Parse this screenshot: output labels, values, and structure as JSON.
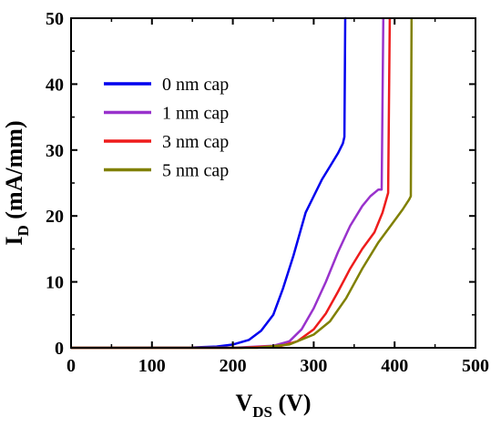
{
  "chart_data": {
    "type": "line",
    "xlabel": {
      "main": "V",
      "sub": "DS",
      "unit": " (V)"
    },
    "ylabel": {
      "main": "I",
      "sub": "D",
      "unit": " (mA/mm)"
    },
    "xlim": [
      0,
      500
    ],
    "ylim": [
      0,
      50
    ],
    "xticks": [
      0,
      100,
      200,
      300,
      400,
      500
    ],
    "yticks": [
      0,
      10,
      20,
      30,
      40,
      50
    ],
    "xtick_labels": [
      "0",
      "100",
      "200",
      "300",
      "400",
      "500"
    ],
    "ytick_labels": [
      "0",
      "10",
      "20",
      "30",
      "40",
      "50"
    ],
    "grid": false,
    "legend_position": "upper-left",
    "series": [
      {
        "name": "0 nm cap",
        "color": "#0000ee",
        "x": [
          0,
          150,
          180,
          200,
          220,
          235,
          250,
          262,
          275,
          290,
          300,
          310,
          320,
          330,
          336,
          338,
          339,
          340
        ],
        "y": [
          0,
          0.05,
          0.2,
          0.5,
          1.2,
          2.6,
          5,
          9,
          14,
          20.5,
          23,
          25.5,
          27.5,
          29.5,
          31,
          32,
          50,
          50
        ]
      },
      {
        "name": "1 nm cap",
        "color": "#9932cc",
        "x": [
          0,
          200,
          250,
          270,
          285,
          300,
          315,
          330,
          345,
          360,
          370,
          380,
          384,
          386
        ],
        "y": [
          0,
          0,
          0.3,
          1,
          2.8,
          6,
          10,
          14.5,
          18.5,
          21.5,
          23,
          24,
          24,
          50
        ]
      },
      {
        "name": "3 nm cap",
        "color": "#ee1c1c",
        "x": [
          0,
          210,
          260,
          280,
          300,
          315,
          330,
          345,
          360,
          375,
          385,
          392,
          394
        ],
        "y": [
          0,
          0,
          0.3,
          1,
          2.8,
          5.2,
          8.5,
          12,
          15,
          17.5,
          20.5,
          23.5,
          50
        ]
      },
      {
        "name": "5 nm cap",
        "color": "#808000",
        "x": [
          0,
          230,
          270,
          300,
          320,
          340,
          360,
          380,
          395,
          410,
          418,
          420,
          421
        ],
        "y": [
          0,
          0,
          0.5,
          2,
          4,
          7.5,
          12,
          16,
          18.5,
          21,
          22.5,
          23,
          50
        ]
      }
    ]
  }
}
